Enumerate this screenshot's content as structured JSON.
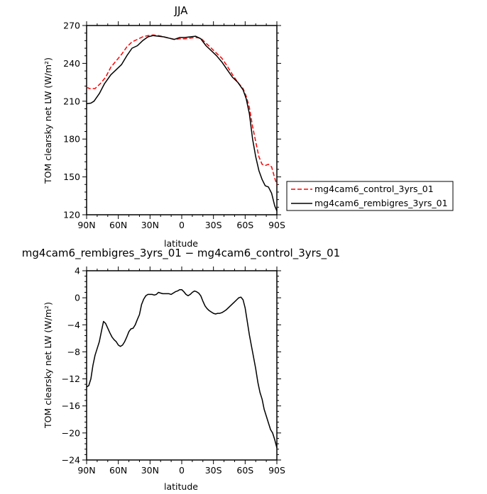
{
  "chart_data": [
    {
      "type": "line",
      "title": "JJA",
      "xlabel": "latitude",
      "ylabel": "TOM clearsky net LW (W/m²)",
      "xlim": [
        90,
        -90
      ],
      "ylim": [
        120,
        270
      ],
      "x_ticks": [
        90,
        60,
        30,
        0,
        -30,
        -60,
        -90
      ],
      "x_tick_labels": [
        "90N",
        "60N",
        "30N",
        "0",
        "30S",
        "60S",
        "90S"
      ],
      "y_ticks": [
        120,
        150,
        180,
        210,
        240,
        270
      ],
      "y_tick_labels": [
        "120",
        "150",
        "180",
        "210",
        "240",
        "270"
      ],
      "legend_position": "right",
      "series": [
        {
          "name": "mg4cam6_control_3yrs_01",
          "color": "#ff0000",
          "dash": "dashed",
          "points": [
            [
              90,
              221
            ],
            [
              87,
              220
            ],
            [
              82,
              220
            ],
            [
              77,
              224
            ],
            [
              72,
              229
            ],
            [
              67,
              237
            ],
            [
              62,
              242
            ],
            [
              57,
              247
            ],
            [
              52,
              253
            ],
            [
              47,
              257
            ],
            [
              42,
              259
            ],
            [
              37,
              261
            ],
            [
              32,
              262
            ],
            [
              27,
              262.5
            ],
            [
              22,
              262
            ],
            [
              17,
              261
            ],
            [
              12,
              260
            ],
            [
              7,
              259
            ],
            [
              2,
              259.5
            ],
            [
              -3,
              259.5
            ],
            [
              -8,
              260
            ],
            [
              -13,
              260.5
            ],
            [
              -18,
              260
            ],
            [
              -23,
              256
            ],
            [
              -28,
              252
            ],
            [
              -33,
              248
            ],
            [
              -38,
              244
            ],
            [
              -43,
              238
            ],
            [
              -48,
              231
            ],
            [
              -53,
              225
            ],
            [
              -58,
              220
            ],
            [
              -61,
              214
            ],
            [
              -64,
              205
            ],
            [
              -67,
              190
            ],
            [
              -70,
              178
            ],
            [
              -73,
              166
            ],
            [
              -76,
              160
            ],
            [
              -79,
              159
            ],
            [
              -82,
              160
            ],
            [
              -85,
              158
            ],
            [
              -88,
              149
            ],
            [
              -90,
              144
            ]
          ]
        },
        {
          "name": "mg4cam6_rembigres_3yrs_01",
          "color": "#000000",
          "dash": "solid",
          "points": [
            [
              90,
              208
            ],
            [
              86,
              208.5
            ],
            [
              83,
              210
            ],
            [
              78,
              216
            ],
            [
              73,
              224
            ],
            [
              67,
              231
            ],
            [
              62,
              235
            ],
            [
              57,
              239
            ],
            [
              52,
              246
            ],
            [
              47,
              252
            ],
            [
              42,
              254
            ],
            [
              37,
              258
            ],
            [
              32,
              261
            ],
            [
              27,
              262
            ],
            [
              22,
              261.5
            ],
            [
              17,
              261
            ],
            [
              12,
              260
            ],
            [
              7,
              259
            ],
            [
              2,
              260.5
            ],
            [
              -3,
              260.5
            ],
            [
              -8,
              261
            ],
            [
              -13,
              261.5
            ],
            [
              -18,
              259.5
            ],
            [
              -23,
              254
            ],
            [
              -28,
              250
            ],
            [
              -33,
              246
            ],
            [
              -38,
              241
            ],
            [
              -43,
              235
            ],
            [
              -48,
              229
            ],
            [
              -53,
              225
            ],
            [
              -58,
              219
            ],
            [
              -61,
              212
            ],
            [
              -64,
              200
            ],
            [
              -67,
              180
            ],
            [
              -70,
              166
            ],
            [
              -73,
              155
            ],
            [
              -76,
              148
            ],
            [
              -79,
              143
            ],
            [
              -82,
              142
            ],
            [
              -85,
              137
            ],
            [
              -88,
              127
            ],
            [
              -90,
              123
            ]
          ]
        }
      ]
    },
    {
      "type": "line",
      "title": "mg4cam6_rembigres_3yrs_01 − mg4cam6_control_3yrs_01",
      "xlabel": "latitude",
      "ylabel": "TOM clearsky net LW (W/m²)",
      "xlim": [
        90,
        -90
      ],
      "ylim": [
        -24,
        4
      ],
      "x_ticks": [
        90,
        60,
        30,
        0,
        -30,
        -60,
        -90
      ],
      "x_tick_labels": [
        "90N",
        "60N",
        "30N",
        "0",
        "30S",
        "60S",
        "90S"
      ],
      "y_ticks": [
        -24,
        -20,
        -16,
        -12,
        -8,
        -4,
        0,
        4
      ],
      "y_tick_labels": [
        "−24",
        "−20",
        "−16",
        "−12",
        "−8",
        "−4",
        "0",
        "4"
      ],
      "series": [
        {
          "color": "#000000",
          "dash": "solid",
          "points": [
            [
              90,
              -13.2
            ],
            [
              88,
              -13
            ],
            [
              86,
              -12
            ],
            [
              84,
              -10
            ],
            [
              82,
              -8.5
            ],
            [
              80,
              -7.5
            ],
            [
              78,
              -6.5
            ],
            [
              76,
              -5
            ],
            [
              74,
              -3.5
            ],
            [
              72,
              -3.8
            ],
            [
              70,
              -4.5
            ],
            [
              68,
              -5.2
            ],
            [
              66,
              -5.8
            ],
            [
              64,
              -6.2
            ],
            [
              62,
              -6.5
            ],
            [
              60,
              -7
            ],
            [
              58,
              -7.2
            ],
            [
              56,
              -7
            ],
            [
              54,
              -6.5
            ],
            [
              52,
              -5.8
            ],
            [
              50,
              -5
            ],
            [
              48,
              -4.6
            ],
            [
              46,
              -4.5
            ],
            [
              44,
              -4
            ],
            [
              42,
              -3.2
            ],
            [
              40,
              -2.5
            ],
            [
              38,
              -1
            ],
            [
              36,
              -0.2
            ],
            [
              34,
              0.3
            ],
            [
              32,
              0.5
            ],
            [
              30,
              0.5
            ],
            [
              28,
              0.5
            ],
            [
              26,
              0.4
            ],
            [
              24,
              0.5
            ],
            [
              22,
              0.8
            ],
            [
              20,
              0.7
            ],
            [
              18,
              0.6
            ],
            [
              15,
              0.6
            ],
            [
              12,
              0.6
            ],
            [
              10,
              0.5
            ],
            [
              8,
              0.7
            ],
            [
              6,
              0.9
            ],
            [
              4,
              1
            ],
            [
              2,
              1.2
            ],
            [
              0,
              1.2
            ],
            [
              -2,
              0.9
            ],
            [
              -4,
              0.5
            ],
            [
              -6,
              0.3
            ],
            [
              -8,
              0.5
            ],
            [
              -10,
              0.8
            ],
            [
              -12,
              1
            ],
            [
              -14,
              0.9
            ],
            [
              -16,
              0.7
            ],
            [
              -18,
              0.3
            ],
            [
              -20,
              -0.5
            ],
            [
              -22,
              -1.2
            ],
            [
              -24,
              -1.6
            ],
            [
              -26,
              -1.9
            ],
            [
              -28,
              -2.1
            ],
            [
              -30,
              -2.3
            ],
            [
              -32,
              -2.4
            ],
            [
              -34,
              -2.3
            ],
            [
              -36,
              -2.3
            ],
            [
              -38,
              -2.2
            ],
            [
              -40,
              -2
            ],
            [
              -42,
              -1.8
            ],
            [
              -44,
              -1.5
            ],
            [
              -46,
              -1.2
            ],
            [
              -48,
              -0.9
            ],
            [
              -50,
              -0.6
            ],
            [
              -52,
              -0.3
            ],
            [
              -54,
              0
            ],
            [
              -56,
              0.1
            ],
            [
              -58,
              -0.3
            ],
            [
              -60,
              -1.5
            ],
            [
              -62,
              -3.5
            ],
            [
              -64,
              -5.5
            ],
            [
              -66,
              -7.2
            ],
            [
              -68,
              -8.8
            ],
            [
              -70,
              -10.5
            ],
            [
              -72,
              -12.5
            ],
            [
              -74,
              -14
            ],
            [
              -76,
              -15
            ],
            [
              -78,
              -16.5
            ],
            [
              -80,
              -17.5
            ],
            [
              -82,
              -18.5
            ],
            [
              -84,
              -19.5
            ],
            [
              -86,
              -20
            ],
            [
              -88,
              -21
            ],
            [
              -90,
              -22.2
            ]
          ]
        }
      ]
    }
  ]
}
